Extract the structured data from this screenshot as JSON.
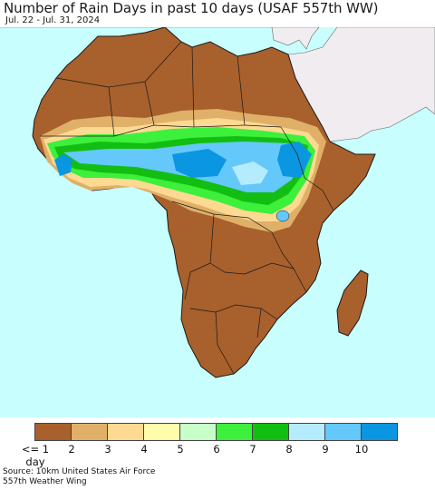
{
  "title": "Number of Rain Days in past 10 days (USAF 557th WW)",
  "subtitle": "Jul. 22 - Jul. 31, 2024",
  "legend": {
    "labels": [
      "<= 1 day",
      "2",
      "3",
      "4",
      "5",
      "6",
      "7",
      "8",
      "9",
      "10"
    ],
    "colors": [
      "#a8602c",
      "#e0b068",
      "#fed992",
      "#fefeaa",
      "#c8fec8",
      "#3cf03c",
      "#13be13",
      "#b4ecfe",
      "#64c8fa",
      "#0a96e0"
    ]
  },
  "source": {
    "line1": "Source: 10km United States Air Force",
    "line2": "557th Weather Wing"
  },
  "map_colors": {
    "ocean": "#c8fefe",
    "land_dry": "#a8602c",
    "non_africa": "#f0ecf0",
    "border": "#1a1a1a"
  }
}
